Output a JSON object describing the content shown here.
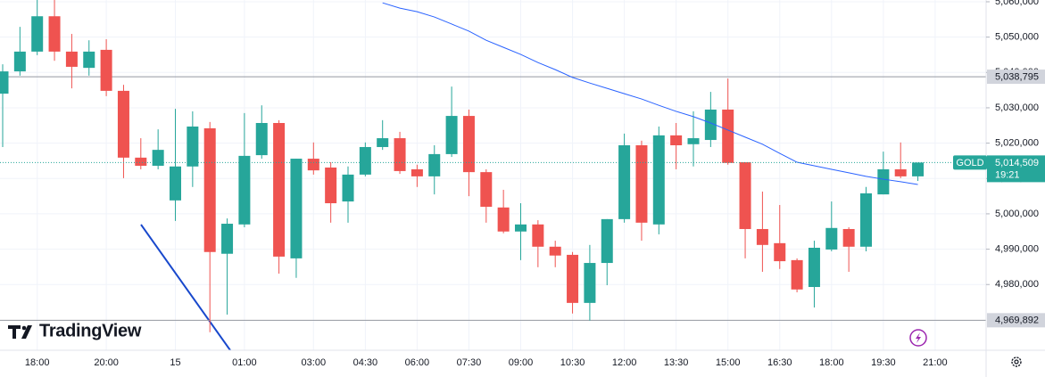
{
  "chart_data": {
    "type": "candlestick",
    "categories": [
      null,
      null,
      "18:00",
      null,
      null,
      null,
      "20:00",
      null,
      null,
      null,
      "15",
      null,
      null,
      null,
      "01:00",
      null,
      null,
      null,
      "03:00",
      null,
      null,
      "04:30",
      null,
      null,
      "06:00",
      null,
      null,
      "07:30",
      null,
      null,
      "09:00",
      null,
      null,
      "10:30",
      null,
      null,
      "12:00",
      null,
      null,
      "13:30",
      null,
      null,
      "15:00",
      null,
      null,
      "16:30",
      null,
      null,
      "18:00",
      null,
      null,
      "19:30",
      null,
      null,
      "21:00"
    ],
    "open": [
      5034000,
      5040300,
      5045900,
      5055900,
      5045900,
      5041300,
      5046400,
      5034800,
      5015900,
      5013600,
      5003800,
      5013400,
      5024200,
      4988700,
      4997000,
      5016600,
      5025700,
      4987400,
      5015600,
      5013100,
      5003500,
      5011100,
      5018900,
      5021400,
      5012600,
      5010600,
      5016900,
      5027700,
      5011800,
      5001800,
      4995000,
      4997000,
      4990700,
      4988400,
      4974800,
      4986100,
      4998500,
      5019400,
      4997000,
      5022200,
      5019700,
      5020900,
      5029500,
      5014600,
      4995700,
      4991700,
      4986900,
      4979300,
      4989900,
      4995700,
      4990700,
      5005500,
      5012600,
      5010600,
      null
    ],
    "high": [
      5042300,
      5052900,
      5061000,
      5062000,
      5050900,
      5049100,
      5049400,
      5036500,
      5021400,
      5023900,
      5029700,
      5029000,
      5026000,
      4998700,
      5028500,
      5030700,
      5026500,
      5015600,
      5020200,
      5014600,
      5013400,
      5020200,
      5026500,
      5023200,
      5013900,
      5019400,
      5036000,
      5029500,
      5012600,
      5006800,
      5003000,
      4998200,
      4992400,
      4989200,
      4991200,
      4998500,
      5022700,
      5020700,
      5024700,
      5025700,
      5029000,
      5034500,
      5038300,
      5014600,
      5006300,
      5002500,
      4987400,
      4992400,
      5003500,
      4996200,
      5007600,
      5017600,
      5020200,
      5014509,
      null
    ],
    "low": [
      5018900,
      5039100,
      5044900,
      5043300,
      5035500,
      5039100,
      5033300,
      5010100,
      5012600,
      5012600,
      4998000,
      5007600,
      4966500,
      4971500,
      4996200,
      5015600,
      4983100,
      4981900,
      5011100,
      4997500,
      4997500,
      5010600,
      5018100,
      5011300,
      5007600,
      5005500,
      5016100,
      5005000,
      4997500,
      4994500,
      4986900,
      4984900,
      4984900,
      4971800,
      4969800,
      4979800,
      4997500,
      4992400,
      4994200,
      5012600,
      5013400,
      5018900,
      5013900,
      4987400,
      4983600,
      4984400,
      4977800,
      4973500,
      4989400,
      4983600,
      4989400,
      5005500,
      5010100,
      5009300,
      null
    ],
    "close": [
      5040300,
      5045900,
      5055900,
      5045900,
      5041600,
      5045900,
      5034800,
      5015900,
      5013600,
      5018100,
      5013400,
      5024700,
      4989200,
      4997200,
      5016400,
      5025700,
      4987900,
      5015600,
      5012300,
      5003000,
      5011100,
      5018900,
      5021400,
      5012100,
      5010600,
      5016900,
      5027700,
      5011800,
      5002000,
      4995000,
      4997000,
      4990700,
      4988200,
      4974800,
      4986100,
      4998500,
      5019400,
      4997500,
      5022200,
      5019400,
      5021400,
      5029500,
      5014400,
      4995700,
      4991200,
      4986600,
      4978600,
      4990400,
      4996000,
      4990700,
      5005800,
      5012600,
      5010600,
      5014509,
      null
    ],
    "up_color": "#26a69a",
    "down_color": "#ef5350",
    "moving_average": {
      "color": "#2962ff",
      "values": [
        null,
        null,
        null,
        null,
        null,
        null,
        null,
        null,
        null,
        null,
        null,
        null,
        null,
        null,
        null,
        null,
        null,
        null,
        null,
        null,
        null,
        null,
        5059700,
        5058200,
        5057200,
        5055700,
        5053700,
        5051700,
        5049100,
        5047100,
        5045100,
        5042800,
        5040800,
        5038600,
        5037000,
        5035500,
        5034000,
        5032500,
        5030700,
        5029000,
        5027500,
        5025700,
        5023700,
        5021700,
        5019700,
        5017100,
        5014600,
        5013600,
        5012600,
        5011600,
        5010600,
        5009800,
        5009100,
        5008300,
        null
      ]
    },
    "ylim": [
      4961400,
      5060500
    ],
    "yticks": [
      {
        "value": 5060000,
        "label": "5,060,000"
      },
      {
        "value": 5050000,
        "label": "5,050,000"
      },
      {
        "value": 5040000,
        "label": "5,040,000"
      },
      {
        "value": 5030000,
        "label": "5,030,000"
      },
      {
        "value": 5020000,
        "label": "5,020,000"
      },
      {
        "value": 5010000,
        "label": "5,010,000"
      },
      {
        "value": 5000000,
        "label": "5,000,000"
      },
      {
        "value": 4990000,
        "label": "4,990,000"
      },
      {
        "value": 4980000,
        "label": "4,980,000"
      }
    ],
    "grid": true,
    "price_lines": [
      {
        "value": 5038795,
        "label": "5,038,795"
      },
      {
        "value": 4969892,
        "label": "4,969,892"
      }
    ],
    "last_price": {
      "symbol": "GOLD",
      "value": 5014509,
      "label": "5,014,509",
      "countdown": "19:21",
      "color": "#26a69a"
    },
    "brand": "TradingView"
  }
}
